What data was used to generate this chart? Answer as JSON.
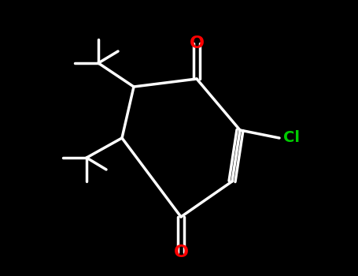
{
  "background_color": "#000000",
  "bond_color": "#000000",
  "bond_width": 2.5,
  "ring_bond_color": "#ffffff",
  "atom_colors": {
    "O": "#ff0000",
    "Cl": "#00cc00",
    "C": "#ffffff"
  },
  "figsize": [
    4.55,
    3.5
  ],
  "dpi": 100
}
